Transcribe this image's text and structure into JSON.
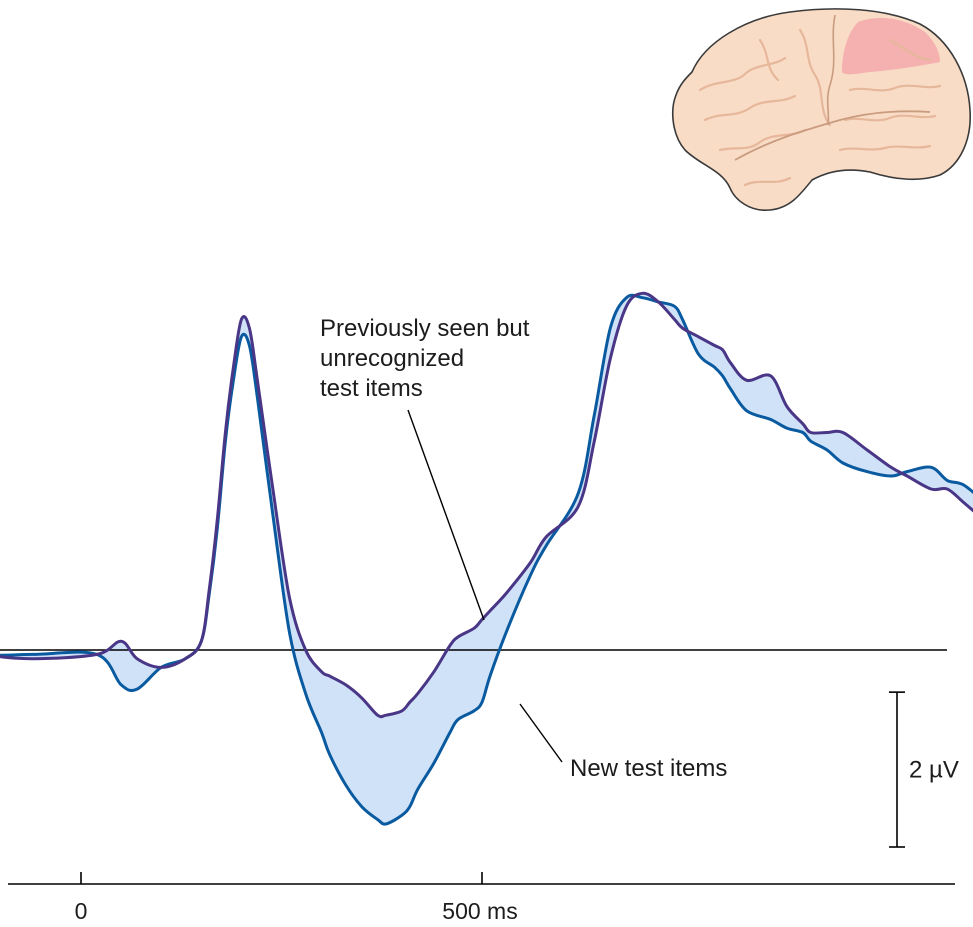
{
  "chart_data": {
    "type": "line",
    "title": "",
    "xlabel": "",
    "ylabel": "",
    "x_unit": "ms",
    "y_unit": "µV",
    "xlim": [
      -200,
      1170
    ],
    "ylim": [
      -4.8,
      8.8
    ],
    "grid": false,
    "legend": "annotations",
    "baseline_value": 0,
    "x_ticks": [
      {
        "value": 0,
        "label": "0"
      },
      {
        "value": 500,
        "label": "500 ms"
      }
    ],
    "scale_bar": {
      "value": 2,
      "label": "2 µV"
    },
    "difference_fill_color": "#cfe2f8",
    "inset_image": "brain-icon",
    "series": [
      {
        "name": "Previously seen but unrecognized test items",
        "color": "#4a3686",
        "x": [
          -200,
          -120,
          -60,
          20,
          50,
          70,
          100,
          130,
          150,
          160,
          170,
          180,
          190,
          200,
          210,
          220,
          240,
          260,
          280,
          300,
          310,
          330,
          350,
          370,
          380,
          400,
          410,
          420,
          440,
          460,
          470,
          490,
          500,
          510,
          530,
          560,
          580,
          620,
          640,
          660,
          680,
          700,
          720,
          740,
          750,
          770,
          790,
          800,
          810,
          830,
          860,
          880,
          900,
          910,
          930,
          950,
          980,
          1010,
          1030,
          1060,
          1080,
          1100,
          1130,
          1150,
          1168
        ],
        "y": [
          0.2,
          -0.1,
          -0.2,
          -0.1,
          0.2,
          -0.2,
          -0.4,
          -0.2,
          0.2,
          1.4,
          3.0,
          5.0,
          6.5,
          7.6,
          7.4,
          6.2,
          3.6,
          1.2,
          0.0,
          -0.5,
          -0.6,
          -0.8,
          -1.1,
          -1.5,
          -1.5,
          -1.4,
          -1.2,
          -1.0,
          -0.5,
          0.1,
          0.3,
          0.5,
          0.7,
          0.9,
          1.3,
          2.0,
          2.6,
          3.3,
          4.8,
          6.7,
          7.9,
          8.2,
          8.0,
          7.6,
          7.4,
          7.2,
          7.0,
          6.9,
          6.6,
          6.2,
          6.3,
          5.6,
          5.2,
          5.0,
          5.0,
          5.0,
          4.6,
          4.2,
          4.0,
          3.7,
          3.7,
          3.4,
          2.9,
          2.4,
          2.0
        ]
      },
      {
        "name": "New test items",
        "color": "#0a5aa0",
        "x": [
          -200,
          -120,
          -60,
          20,
          50,
          70,
          100,
          130,
          150,
          160,
          170,
          180,
          190,
          200,
          210,
          220,
          240,
          260,
          280,
          300,
          310,
          330,
          350,
          370,
          380,
          400,
          410,
          420,
          440,
          460,
          470,
          490,
          500,
          510,
          530,
          560,
          580,
          620,
          640,
          660,
          680,
          700,
          720,
          740,
          750,
          770,
          790,
          800,
          810,
          830,
          860,
          880,
          900,
          910,
          930,
          950,
          980,
          1010,
          1030,
          1060,
          1080,
          1100,
          1130,
          1150,
          1168
        ],
        "y": [
          0.2,
          -0.1,
          -0.1,
          -0.1,
          -0.8,
          -0.9,
          -0.4,
          -0.2,
          0.2,
          1.3,
          2.8,
          4.8,
          6.2,
          7.2,
          7.0,
          5.8,
          3.0,
          0.4,
          -1.0,
          -1.9,
          -2.4,
          -3.1,
          -3.6,
          -3.9,
          -4.0,
          -3.8,
          -3.6,
          -3.2,
          -2.6,
          -1.9,
          -1.6,
          -1.4,
          -1.2,
          -0.6,
          0.4,
          1.7,
          2.4,
          3.6,
          5.4,
          7.4,
          8.1,
          8.1,
          8.0,
          7.9,
          7.6,
          6.8,
          6.5,
          6.3,
          6.0,
          5.5,
          5.3,
          5.1,
          5.0,
          4.8,
          4.6,
          4.3,
          4.1,
          4.0,
          4.1,
          4.2,
          3.9,
          3.8,
          3.4,
          3.5,
          3.8
        ]
      }
    ],
    "annotations": [
      {
        "series": 0,
        "lines": [
          "Previously seen but",
          "unrecognized",
          "test items"
        ]
      },
      {
        "series": 1,
        "lines": [
          "New test items"
        ]
      }
    ]
  }
}
